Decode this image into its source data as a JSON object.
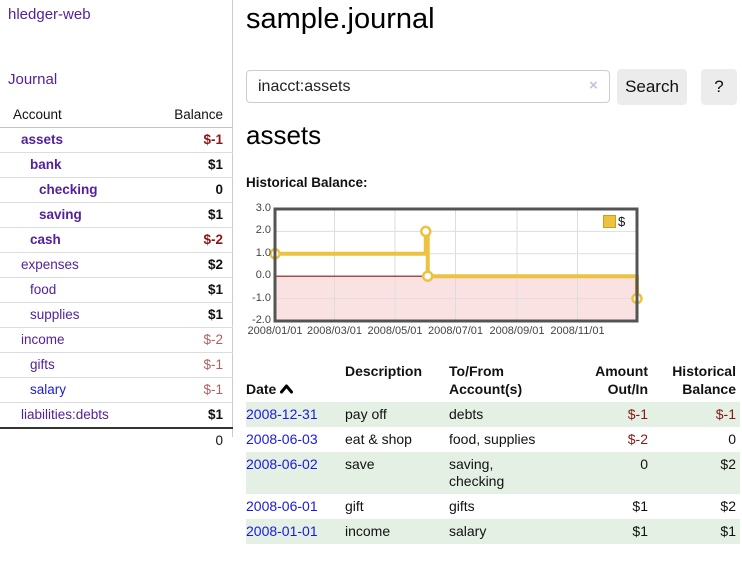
{
  "colors": {
    "link_purple": "#52229b",
    "link_blue": "#1a1ae0",
    "negative_red": "#8b1717",
    "negative_muted": "#b06060",
    "row_green": "#e3f0e3",
    "series_gold": "#edc240"
  },
  "sidebar": {
    "app_title": "hledger-web",
    "journal_link": "Journal",
    "table": {
      "account_header": "Account",
      "balance_header": "Balance",
      "rows": [
        {
          "name": "assets",
          "level": 1,
          "bold": true,
          "balance": "$-1",
          "balance_style": "neg-bold"
        },
        {
          "name": "bank",
          "level": 2,
          "bold": true,
          "balance": "$1",
          "balance_style": "pos"
        },
        {
          "name": "checking",
          "level": 3,
          "bold": true,
          "balance": "0",
          "balance_style": "pos"
        },
        {
          "name": "saving",
          "level": 3,
          "bold": true,
          "balance": "$1",
          "balance_style": "pos"
        },
        {
          "name": "cash",
          "level": 2,
          "bold": true,
          "balance": "$-2",
          "balance_style": "neg-bold"
        },
        {
          "name": "expenses",
          "level": 1,
          "bold": false,
          "balance": "$2",
          "balance_style": "pos"
        },
        {
          "name": "food",
          "level": 2,
          "bold": false,
          "balance": "$1",
          "balance_style": "pos"
        },
        {
          "name": "supplies",
          "level": 2,
          "bold": false,
          "balance": "$1",
          "balance_style": "pos"
        },
        {
          "name": "income",
          "level": 1,
          "bold": false,
          "balance": "$-2",
          "balance_style": "neg-muted"
        },
        {
          "name": "gifts",
          "level": 2,
          "bold": false,
          "balance": "$-1",
          "balance_style": "neg-muted"
        },
        {
          "name": "salary",
          "level": 2,
          "bold": false,
          "blue": true,
          "balance": "$-1",
          "balance_style": "neg-muted"
        },
        {
          "name": "liabilities:debts",
          "level": 1,
          "bold": false,
          "balance": "$1",
          "balance_style": "pos"
        }
      ],
      "total": "0"
    }
  },
  "header": {
    "title": "sample.journal"
  },
  "search": {
    "value": "inacct:assets",
    "clear_icon": "×",
    "search_button": "Search",
    "help_button": "?"
  },
  "account_page": {
    "title": "assets",
    "chart_label": "Historical Balance:"
  },
  "chart_data": {
    "type": "line",
    "step": true,
    "title": "Historical Balance:",
    "legend": "$",
    "legend_position": "top-right",
    "x_range": [
      "2008-01-01",
      "2008-12-31"
    ],
    "ylim": [
      -2,
      3
    ],
    "yticks": [
      "3.0",
      "2.0",
      "1.0",
      "0.0",
      "-1.0",
      "-2.0"
    ],
    "xticks": [
      "2008/01/01",
      "2008/03/01",
      "2008/05/01",
      "2008/07/01",
      "2008/09/01",
      "2008/11/01"
    ],
    "series": [
      {
        "name": "$",
        "color": "#edc240",
        "points": [
          [
            "2008-01-01",
            1
          ],
          [
            "2008-06-01",
            2
          ],
          [
            "2008-06-03",
            0
          ],
          [
            "2008-12-31",
            -1
          ]
        ]
      }
    ],
    "colors": {
      "negative_region": "#fbe2e2",
      "zero_line": "#8b1a1a",
      "grid": "#dddddd",
      "border": "#545454"
    }
  },
  "register_table": {
    "headers": {
      "date": "Date",
      "description": "Description",
      "accounts": "To/From\nAccount(s)",
      "amount": "Amount\nOut/In",
      "balance": "Historical\nBalance"
    },
    "rows": [
      {
        "date": "2008-12-31",
        "description": "pay off",
        "accounts": "debts",
        "amount": "$-1",
        "amount_neg": true,
        "balance": "$-1",
        "balance_neg": true,
        "shade": true
      },
      {
        "date": "2008-06-03",
        "description": "eat & shop",
        "accounts": "food, supplies",
        "amount": "$-2",
        "amount_neg": true,
        "balance": "0",
        "balance_neg": false,
        "shade": false
      },
      {
        "date": "2008-06-02",
        "description": "save",
        "accounts": "saving,\nchecking",
        "amount": "0",
        "amount_neg": false,
        "balance": "$2",
        "balance_neg": false,
        "shade": true
      },
      {
        "date": "2008-06-01",
        "description": "gift",
        "accounts": "gifts",
        "amount": "$1",
        "amount_neg": false,
        "balance": "$2",
        "balance_neg": false,
        "shade": false
      },
      {
        "date": "2008-01-01",
        "description": "income",
        "accounts": "salary",
        "amount": "$1",
        "amount_neg": false,
        "balance": "$1",
        "balance_neg": false,
        "shade": true
      }
    ]
  }
}
